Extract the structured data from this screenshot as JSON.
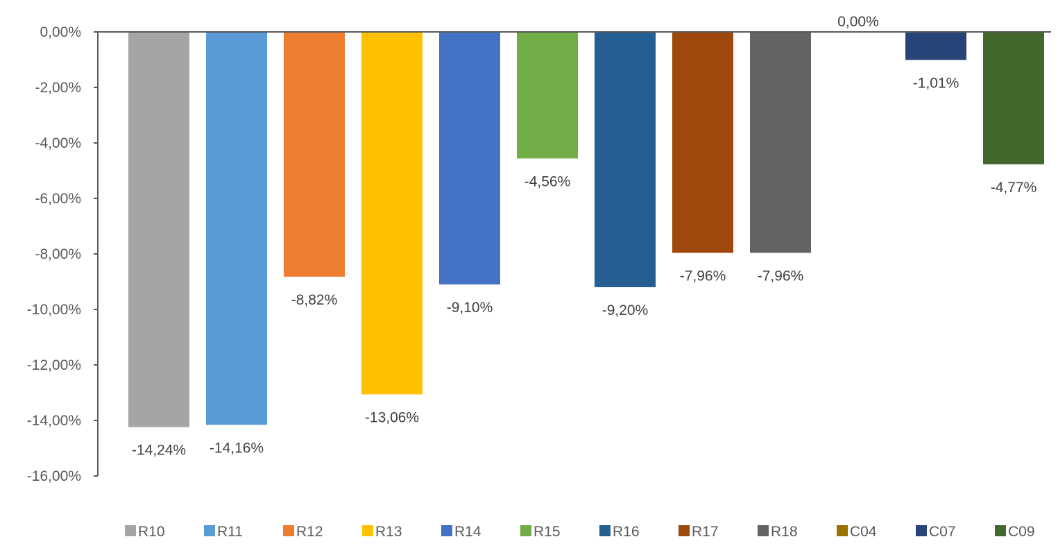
{
  "chart_data": {
    "type": "bar",
    "title": "",
    "xlabel": "",
    "ylabel": "",
    "ylim": [
      -16,
      0
    ],
    "y_ticks": [
      "0,00%",
      "-2,00%",
      "-4,00%",
      "-6,00%",
      "-8,00%",
      "-10,00%",
      "-12,00%",
      "-14,00%",
      "-16,00%"
    ],
    "grid": false,
    "legend_position": "bottom",
    "series": [
      {
        "name": "R10",
        "value": -14.24,
        "label": "-14,24%",
        "color": "#a5a5a5"
      },
      {
        "name": "R11",
        "value": -14.16,
        "label": "-14,16%",
        "color": "#5b9bd5"
      },
      {
        "name": "R12",
        "value": -8.82,
        "label": "-8,82%",
        "color": "#ed7d31"
      },
      {
        "name": "R13",
        "value": -13.06,
        "label": "-13,06%",
        "color": "#ffc000"
      },
      {
        "name": "R14",
        "value": -9.1,
        "label": "-9,10%",
        "color": "#4472c4"
      },
      {
        "name": "R15",
        "value": -4.56,
        "label": "-4,56%",
        "color": "#70ad47"
      },
      {
        "name": "R16",
        "value": -9.2,
        "label": "-9,20%",
        "color": "#255e91"
      },
      {
        "name": "R17",
        "value": -7.96,
        "label": "-7,96%",
        "color": "#9e480e"
      },
      {
        "name": "R18",
        "value": -7.96,
        "label": "-7,96%",
        "color": "#636363"
      },
      {
        "name": "C04",
        "value": 0.0,
        "label": "0,00%",
        "color": "#997300"
      },
      {
        "name": "C07",
        "value": -1.01,
        "label": "-1,01%",
        "color": "#264478"
      },
      {
        "name": "C09",
        "value": -4.77,
        "label": "-4,77%",
        "color": "#43682b"
      }
    ]
  }
}
